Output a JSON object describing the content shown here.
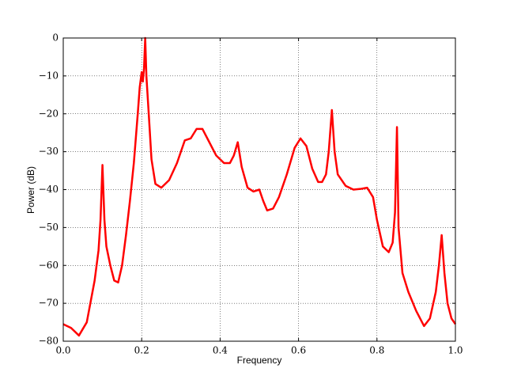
{
  "chart_data": {
    "type": "line",
    "xlabel": "Frequency",
    "ylabel": "Power (dB)",
    "color": "#ff0000",
    "grid": true,
    "xlim": [
      0,
      1
    ],
    "ylim": [
      -80,
      0
    ],
    "xticks": [
      {
        "value": 0,
        "label": "0.0"
      },
      {
        "value": 0.2,
        "label": "0.2"
      },
      {
        "value": 0.4,
        "label": "0.4"
      },
      {
        "value": 0.6,
        "label": "0.6"
      },
      {
        "value": 0.8,
        "label": "0.8"
      },
      {
        "value": 1,
        "label": "1.0"
      }
    ],
    "yticks": [
      {
        "value": -80,
        "label": "−80"
      },
      {
        "value": -70,
        "label": "−70"
      },
      {
        "value": -60,
        "label": "−60"
      },
      {
        "value": -50,
        "label": "−50"
      },
      {
        "value": -40,
        "label": "−40"
      },
      {
        "value": -30,
        "label": "−30"
      },
      {
        "value": -20,
        "label": "−20"
      },
      {
        "value": -10,
        "label": "−10"
      },
      0
    ],
    "x": [
      0,
      0.02,
      0.04,
      0.06,
      0.08,
      0.09,
      0.095,
      0.1,
      0.105,
      0.11,
      0.12,
      0.13,
      0.14,
      0.15,
      0.16,
      0.17,
      0.18,
      0.19,
      0.195,
      0.2,
      0.203,
      0.206,
      0.209,
      0.212,
      0.218,
      0.225,
      0.235,
      0.25,
      0.27,
      0.29,
      0.31,
      0.325,
      0.34,
      0.355,
      0.37,
      0.39,
      0.41,
      0.425,
      0.435,
      0.445,
      0.455,
      0.47,
      0.485,
      0.5,
      0.51,
      0.52,
      0.535,
      0.55,
      0.57,
      0.59,
      0.605,
      0.62,
      0.635,
      0.65,
      0.66,
      0.67,
      0.677,
      0.685,
      0.692,
      0.7,
      0.72,
      0.74,
      0.76,
      0.775,
      0.79,
      0.8,
      0.815,
      0.83,
      0.84,
      0.846,
      0.851,
      0.855,
      0.865,
      0.88,
      0.9,
      0.92,
      0.935,
      0.95,
      0.958,
      0.965,
      0.972,
      0.98,
      0.99,
      1
    ],
    "values": [
      -75.5,
      -76.5,
      -78.5,
      -75,
      -64,
      -56,
      -48,
      -33.5,
      -48,
      -55,
      -60,
      -64,
      -64.5,
      -60,
      -52,
      -43,
      -33,
      -20,
      -13,
      -9,
      -11.5,
      -8,
      0,
      -10,
      -20,
      -32,
      -38.5,
      -39.5,
      -37.5,
      -33,
      -27,
      -26.5,
      -24,
      -24,
      -27,
      -31,
      -33,
      -33,
      -31,
      -27.5,
      -34,
      -39.5,
      -40.5,
      -40,
      -43,
      -45.5,
      -45,
      -42,
      -36,
      -29,
      -26.5,
      -28.5,
      -34.5,
      -38,
      -38,
      -36,
      -30,
      -19,
      -30,
      -36,
      -39,
      -40,
      -39.8,
      -39.5,
      -42,
      -48,
      -55,
      -56.5,
      -54,
      -46,
      -23.5,
      -50,
      -62,
      -67,
      -72,
      -76,
      -74,
      -67,
      -60,
      -52,
      -62,
      -70,
      -74,
      -75.5
    ]
  }
}
